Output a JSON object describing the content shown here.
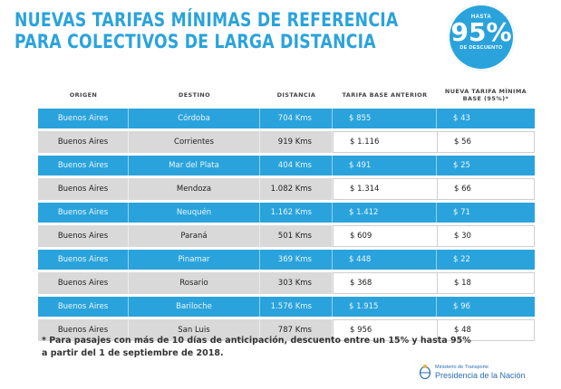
{
  "title": {
    "line1": "NUEVAS TARIFAS MÍNIMAS DE REFERENCIA",
    "line2": "PARA COLECTIVOS DE LARGA DISTANCIA"
  },
  "badge": {
    "top": "HASTA",
    "value": "95%",
    "bottom": "DE DESCUENTO"
  },
  "table": {
    "headers": [
      "ORIGEN",
      "DESTINO",
      "DISTANCIA",
      "TARIFA BASE ANTERIOR",
      "NUEVA TARIFA MÍNIMA BASE (95%)*"
    ],
    "rows": [
      [
        "Buenos Aires",
        "Córdoba",
        "704 Kms",
        "$ 855",
        "$ 43"
      ],
      [
        "Buenos Aires",
        "Corrientes",
        "919 Kms",
        "$ 1.116",
        "$ 56"
      ],
      [
        "Buenos Aires",
        "Mar del Plata",
        "404 Kms",
        "$ 491",
        "$ 25"
      ],
      [
        "Buenos Aires",
        "Mendoza",
        "1.082 Kms",
        "$ 1.314",
        "$ 66"
      ],
      [
        "Buenos Aires",
        "Neuquén",
        "1.162 Kms",
        "$ 1.412",
        "$ 71"
      ],
      [
        "Buenos Aires",
        "Paraná",
        "501 Kms",
        "$ 609",
        "$ 30"
      ],
      [
        "Buenos Aires",
        "Pinamar",
        "369 Kms",
        "$ 448",
        "$ 22"
      ],
      [
        "Buenos Aires",
        "Rosario",
        "303 Kms",
        "$ 368",
        "$ 18"
      ],
      [
        "Buenos Aires",
        "Bariloche",
        "1.576 Kms",
        "$ 1.915",
        "$ 96"
      ],
      [
        "Buenos Aires",
        "San Luis",
        "787 Kms",
        "$ 956",
        "$ 48"
      ]
    ]
  },
  "footnote": {
    "line1": "* Para pasajes con más de 10 días de anticipación, descuento entre un 15% y hasta 95%",
    "line2": "a partir del 1 de septiembre de 2018."
  },
  "footer": {
    "ministry": "Ministerio de Transporte",
    "presidency": "Presidencia de la Nación"
  },
  "colors": {
    "accent": "#2aa3dc",
    "row_gray": "#d9d9d9"
  }
}
